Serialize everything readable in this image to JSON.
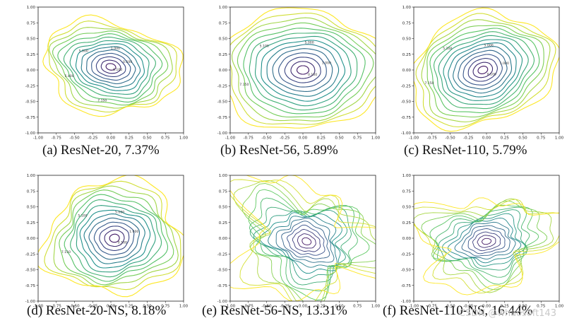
{
  "watermark": "CSDN @whaosoft143",
  "chart_data": [
    {
      "type": "contour",
      "caption": "(a) ResNet-20, 7.37%",
      "xlim": [
        -1.0,
        1.0
      ],
      "ylim": [
        -1.0,
        1.0
      ],
      "xticks": [
        "-1.00",
        "-0.75",
        "-0.50",
        "-0.25",
        "0.00",
        "0.25",
        "0.50",
        "0.75",
        "1.00"
      ],
      "yticks": [
        "1.00",
        "0.75",
        "0.50",
        "0.25",
        "0.00",
        "-0.25",
        "-0.50",
        "-0.75",
        "-1.00"
      ],
      "center": [
        0.0,
        0.05
      ],
      "contour_labels": [
        "0.100",
        "0.500",
        "1.000",
        "5.000",
        "5.400",
        "7.150"
      ],
      "colormap": [
        "#440154",
        "#3b528b",
        "#21918c",
        "#5ec962",
        "#fde725"
      ]
    },
    {
      "type": "contour",
      "caption": "(b) ResNet-56, 5.89%",
      "xlim": [
        -1.0,
        1.0
      ],
      "ylim": [
        -1.0,
        1.0
      ],
      "xticks": [
        "-1.00",
        "-0.75",
        "-0.50",
        "-0.25",
        "0.00",
        "0.25",
        "0.50",
        "0.75",
        "1.00"
      ],
      "yticks": [
        "1.00",
        "0.75",
        "0.50",
        "0.25",
        "0.00",
        "-0.25",
        "-0.50",
        "-0.75",
        "-1.00"
      ],
      "center": [
        0.0,
        0.0
      ],
      "contour_labels": [
        "0.100",
        "1.000",
        "5.000",
        "5.100",
        "7.150"
      ],
      "colormap": [
        "#440154",
        "#3b528b",
        "#21918c",
        "#5ec962",
        "#fde725"
      ]
    },
    {
      "type": "contour",
      "caption": "(c) ResNet-110, 5.79%",
      "xlim": [
        -1.0,
        1.0
      ],
      "ylim": [
        -1.0,
        1.0
      ],
      "xticks": [
        "-1.00",
        "-0.75",
        "-0.50",
        "-0.25",
        "0.00",
        "0.25",
        "0.50",
        "0.75",
        "1.00"
      ],
      "yticks": [
        "1.00",
        "0.75",
        "0.50",
        "0.25",
        "0.00",
        "-0.25",
        "-0.50",
        "-0.75",
        "-1.00"
      ],
      "center": [
        -0.05,
        0.0
      ],
      "contour_labels": [
        "0.100",
        "1.000",
        "5.000",
        "5.100",
        "7.150"
      ],
      "colormap": [
        "#440154",
        "#3b528b",
        "#21918c",
        "#5ec962",
        "#fde725"
      ]
    },
    {
      "type": "contour",
      "caption": "(d) ResNet-20-NS, 8.18%",
      "xlim": [
        -1.0,
        1.0
      ],
      "ylim": [
        -1.0,
        1.0
      ],
      "xticks": [
        "-1.00",
        "-0.75",
        "-0.50",
        "-0.25",
        "0.00",
        "0.25",
        "0.50",
        "0.75",
        "1.00"
      ],
      "yticks": [
        "1.00",
        "0.75",
        "0.50",
        "0.25",
        "0.00",
        "-0.25",
        "-0.50",
        "-0.75",
        "-1.00"
      ],
      "center": [
        0.05,
        0.0
      ],
      "contour_labels": [
        "0.100",
        "1.000",
        "5.000",
        "5.100",
        "7.150"
      ],
      "colormap": [
        "#440154",
        "#3b528b",
        "#21918c",
        "#5ec962",
        "#fde725"
      ]
    },
    {
      "type": "contour",
      "caption": "(e) ResNet-56-NS, 13.31%",
      "xlim": [
        -1.0,
        1.0
      ],
      "ylim": [
        -1.0,
        1.0
      ],
      "xticks": [
        "-1.00",
        "-0.75",
        "-0.50",
        "-0.25",
        "0.00",
        "0.25",
        "0.50",
        "0.75",
        "1.00"
      ],
      "yticks": [
        "1.00",
        "0.75",
        "0.50",
        "0.25",
        "0.00",
        "-0.25",
        "-0.50",
        "-0.75",
        "-1.00"
      ],
      "center": [
        0.05,
        -0.05
      ],
      "contour_labels": [],
      "colormap": [
        "#440154",
        "#3b528b",
        "#21918c",
        "#5ec962",
        "#fde725"
      ]
    },
    {
      "type": "contour",
      "caption": "(f) ResNet-110-NS, 16.44%",
      "xlim": [
        -1.0,
        1.0
      ],
      "ylim": [
        -1.0,
        1.0
      ],
      "xticks": [
        "-1.00",
        "-0.75",
        "-0.50",
        "-0.25",
        "0.00",
        "0.25",
        "0.50",
        "0.75",
        "1.00"
      ],
      "yticks": [
        "1.00",
        "0.75",
        "0.50",
        "0.25",
        "0.00",
        "-0.25",
        "-0.50",
        "-0.75",
        "-1.00"
      ],
      "center": [
        0.0,
        -0.05
      ],
      "contour_labels": [],
      "colormap": [
        "#440154",
        "#3b528b",
        "#21918c",
        "#5ec962",
        "#fde725"
      ]
    }
  ]
}
